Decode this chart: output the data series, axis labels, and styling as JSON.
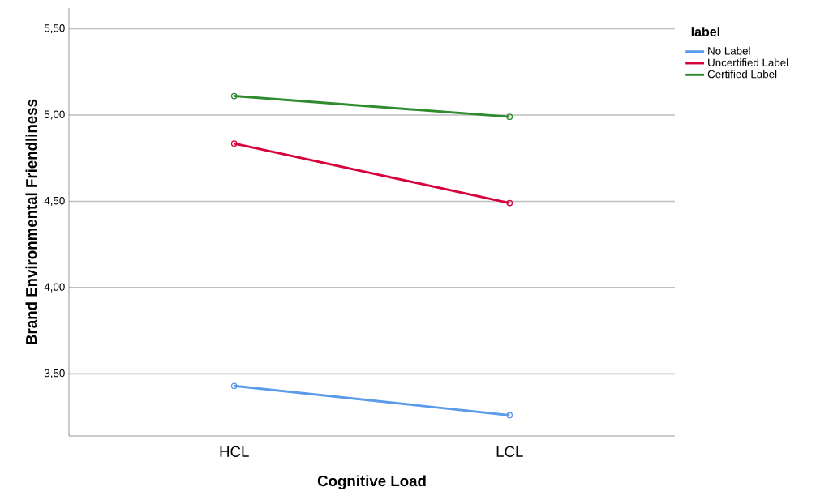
{
  "chart_data": {
    "type": "line",
    "xlabel": "Cognitive Load",
    "ylabel": "Brand Environmental Friendliness",
    "legend_title": "label",
    "categories": [
      "HCL",
      "LCL"
    ],
    "series": [
      {
        "name": "No Label",
        "color": "#5b9bea",
        "values": [
          3.43,
          3.26
        ]
      },
      {
        "name": "Uncertified Label",
        "color": "#d6003a",
        "values": [
          4.835,
          4.49
        ]
      },
      {
        "name": "Certified Label",
        "color": "#2e8b2e",
        "values": [
          5.11,
          4.99
        ]
      }
    ],
    "ylim": [
      3.14,
      5.62
    ],
    "yticks": [
      {
        "value": 3.5,
        "label": "3,50"
      },
      {
        "value": 4.0,
        "label": "4,00"
      },
      {
        "value": 4.5,
        "label": "4,50"
      },
      {
        "value": 5.0,
        "label": "5,00"
      },
      {
        "value": 5.5,
        "label": "5,50"
      }
    ],
    "grid": "y",
    "legend": "top right",
    "marker": "circle",
    "line_style": "solid"
  }
}
